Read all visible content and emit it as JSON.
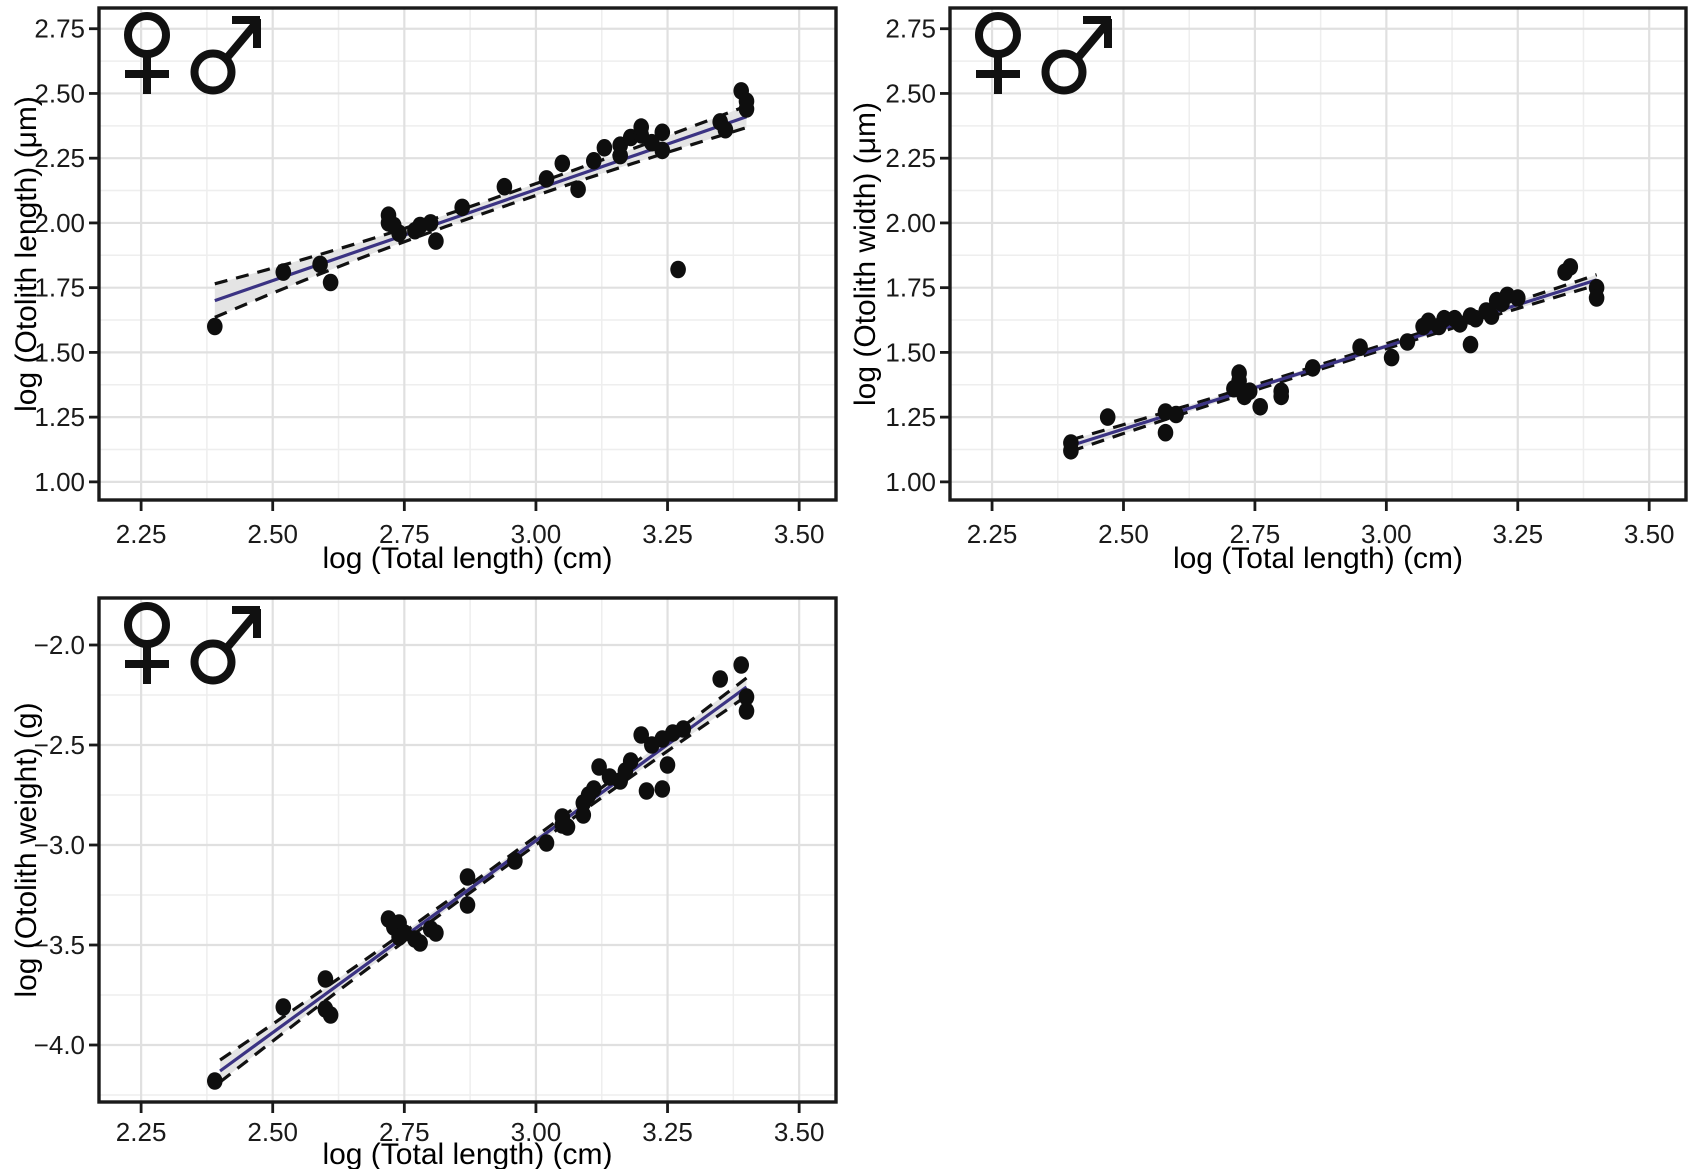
{
  "figure": {
    "background": "#ffffff",
    "description": "Three log-log scatter plots of otolith morphometry versus fish total length, pooled sexes (female and male symbols shown in each panel)"
  },
  "style": {
    "point_color": "#0e0e0e",
    "regression_color": "#3b3383",
    "ci_fill": "#e4e4e4",
    "ci_dash_color": "#111111",
    "grid_major": "#e0e0e0",
    "grid_minor": "#eeeeee",
    "panel_border": "#1a1a1a",
    "tick_color": "#1a1a1a",
    "tick_label_color": "#1a1a1a",
    "axis_title_color": "#000000",
    "symbol_color": "#111111"
  },
  "legend": {
    "female_symbol": "female-icon",
    "male_symbol": "male-icon"
  },
  "chart_data": [
    {
      "id": "otolith-length",
      "type": "scatter",
      "title": "",
      "xlabel": "log (Total length) (cm)",
      "ylabel": "log (Otolith length) (μm)",
      "xlim": [
        2.17,
        3.57
      ],
      "ylim": [
        0.93,
        2.83
      ],
      "xticks": [
        2.25,
        2.5,
        2.75,
        3.0,
        3.25,
        3.5
      ],
      "xtick_labels": [
        "2.25",
        "2.50",
        "2.75",
        "3.00",
        "3.25",
        "3.50"
      ],
      "yticks": [
        1.0,
        1.25,
        1.5,
        1.75,
        2.0,
        2.25,
        2.5,
        2.75
      ],
      "ytick_labels": [
        "1.00",
        "1.25",
        "1.50",
        "1.75",
        "2.00",
        "2.25",
        "2.50",
        "2.75"
      ],
      "grid": true,
      "points": [
        [
          2.39,
          1.6
        ],
        [
          2.52,
          1.81
        ],
        [
          2.59,
          1.84
        ],
        [
          2.61,
          1.77
        ],
        [
          2.72,
          2.03
        ],
        [
          2.72,
          2.0
        ],
        [
          2.73,
          1.99
        ],
        [
          2.74,
          1.96
        ],
        [
          2.77,
          1.97
        ],
        [
          2.78,
          1.99
        ],
        [
          2.8,
          2.0
        ],
        [
          2.81,
          1.93
        ],
        [
          2.86,
          2.06
        ],
        [
          2.94,
          2.14
        ],
        [
          3.02,
          2.17
        ],
        [
          3.05,
          2.23
        ],
        [
          3.08,
          2.13
        ],
        [
          3.11,
          2.24
        ],
        [
          3.13,
          2.29
        ],
        [
          3.16,
          2.3
        ],
        [
          3.16,
          2.26
        ],
        [
          3.18,
          2.33
        ],
        [
          3.2,
          2.34
        ],
        [
          3.2,
          2.37
        ],
        [
          3.22,
          2.31
        ],
        [
          3.24,
          2.28
        ],
        [
          3.24,
          2.35
        ],
        [
          3.27,
          1.82
        ],
        [
          3.35,
          2.39
        ],
        [
          3.36,
          2.36
        ],
        [
          3.39,
          2.51
        ],
        [
          3.4,
          2.47
        ],
        [
          3.4,
          2.44
        ]
      ],
      "regression": {
        "x1": 2.39,
        "y1": 1.7,
        "x2": 3.4,
        "y2": 2.41
      },
      "ci_halfwidth": {
        "left": 0.065,
        "mid": 0.022,
        "right": 0.042
      }
    },
    {
      "id": "otolith-width",
      "type": "scatter",
      "title": "",
      "xlabel": "log (Total length) (cm)",
      "ylabel": "log (Otolith width) (μm)",
      "xlim": [
        2.17,
        3.57
      ],
      "ylim": [
        0.93,
        2.83
      ],
      "xticks": [
        2.25,
        2.5,
        2.75,
        3.0,
        3.25,
        3.5
      ],
      "xtick_labels": [
        "2.25",
        "2.50",
        "2.75",
        "3.00",
        "3.25",
        "3.50"
      ],
      "yticks": [
        1.0,
        1.25,
        1.5,
        1.75,
        2.0,
        2.25,
        2.5,
        2.75
      ],
      "ytick_labels": [
        "1.00",
        "1.25",
        "1.50",
        "1.75",
        "2.00",
        "2.25",
        "2.50",
        "2.75"
      ],
      "grid": true,
      "points": [
        [
          2.4,
          1.15
        ],
        [
          2.4,
          1.12
        ],
        [
          2.47,
          1.25
        ],
        [
          2.58,
          1.27
        ],
        [
          2.58,
          1.19
        ],
        [
          2.6,
          1.26
        ],
        [
          2.71,
          1.36
        ],
        [
          2.72,
          1.39
        ],
        [
          2.72,
          1.42
        ],
        [
          2.73,
          1.33
        ],
        [
          2.74,
          1.35
        ],
        [
          2.76,
          1.29
        ],
        [
          2.8,
          1.35
        ],
        [
          2.8,
          1.33
        ],
        [
          2.86,
          1.44
        ],
        [
          2.95,
          1.52
        ],
        [
          3.01,
          1.48
        ],
        [
          3.04,
          1.54
        ],
        [
          3.07,
          1.6
        ],
        [
          3.08,
          1.62
        ],
        [
          3.1,
          1.6
        ],
        [
          3.11,
          1.63
        ],
        [
          3.13,
          1.63
        ],
        [
          3.14,
          1.61
        ],
        [
          3.16,
          1.53
        ],
        [
          3.16,
          1.64
        ],
        [
          3.17,
          1.63
        ],
        [
          3.19,
          1.66
        ],
        [
          3.2,
          1.64
        ],
        [
          3.21,
          1.7
        ],
        [
          3.22,
          1.69
        ],
        [
          3.23,
          1.72
        ],
        [
          3.25,
          1.71
        ],
        [
          3.34,
          1.81
        ],
        [
          3.35,
          1.83
        ],
        [
          3.4,
          1.75
        ],
        [
          3.4,
          1.71
        ]
      ],
      "regression": {
        "x1": 2.4,
        "y1": 1.14,
        "x2": 3.4,
        "y2": 1.78
      },
      "ci_halfwidth": {
        "left": 0.022,
        "mid": 0.009,
        "right": 0.02
      }
    },
    {
      "id": "otolith-weight",
      "type": "scatter",
      "title": "",
      "xlabel": "log (Total length) (cm)",
      "ylabel": "log (Otolith weight) (g)",
      "xlim": [
        2.17,
        3.57
      ],
      "ylim": [
        -4.285,
        -1.765
      ],
      "xticks": [
        2.25,
        2.5,
        2.75,
        3.0,
        3.25,
        3.5
      ],
      "xtick_labels": [
        "2.25",
        "2.50",
        "2.75",
        "3.00",
        "3.25",
        "3.50"
      ],
      "yticks": [
        -4.0,
        -3.5,
        -3.0,
        -2.5,
        -2.0
      ],
      "ytick_labels": [
        "−4.0",
        "−3.5",
        "−3.0",
        "−2.5",
        "−2.0"
      ],
      "grid": true,
      "points": [
        [
          2.39,
          -4.18
        ],
        [
          2.52,
          -3.81
        ],
        [
          2.6,
          -3.67
        ],
        [
          2.6,
          -3.82
        ],
        [
          2.61,
          -3.85
        ],
        [
          2.72,
          -3.37
        ],
        [
          2.73,
          -3.41
        ],
        [
          2.74,
          -3.39
        ],
        [
          2.74,
          -3.46
        ],
        [
          2.75,
          -3.44
        ],
        [
          2.77,
          -3.47
        ],
        [
          2.78,
          -3.49
        ],
        [
          2.8,
          -3.42
        ],
        [
          2.81,
          -3.44
        ],
        [
          2.87,
          -3.16
        ],
        [
          2.87,
          -3.3
        ],
        [
          2.96,
          -3.08
        ],
        [
          3.02,
          -2.99
        ],
        [
          3.05,
          -2.9
        ],
        [
          3.05,
          -2.86
        ],
        [
          3.06,
          -2.91
        ],
        [
          3.09,
          -2.79
        ],
        [
          3.09,
          -2.85
        ],
        [
          3.1,
          -2.75
        ],
        [
          3.11,
          -2.72
        ],
        [
          3.12,
          -2.61
        ],
        [
          3.14,
          -2.66
        ],
        [
          3.16,
          -2.68
        ],
        [
          3.17,
          -2.63
        ],
        [
          3.18,
          -2.58
        ],
        [
          3.21,
          -2.73
        ],
        [
          3.24,
          -2.72
        ],
        [
          3.25,
          -2.6
        ],
        [
          3.2,
          -2.45
        ],
        [
          3.22,
          -2.5
        ],
        [
          3.24,
          -2.47
        ],
        [
          3.26,
          -2.44
        ],
        [
          3.28,
          -2.42
        ],
        [
          3.35,
          -2.17
        ],
        [
          3.39,
          -2.1
        ],
        [
          3.4,
          -2.26
        ],
        [
          3.4,
          -2.33
        ]
      ],
      "regression": {
        "x1": 2.4,
        "y1": -4.13,
        "x2": 3.4,
        "y2": -2.21
      },
      "ci_halfwidth": {
        "left": 0.055,
        "mid": 0.02,
        "right": 0.045
      }
    }
  ]
}
